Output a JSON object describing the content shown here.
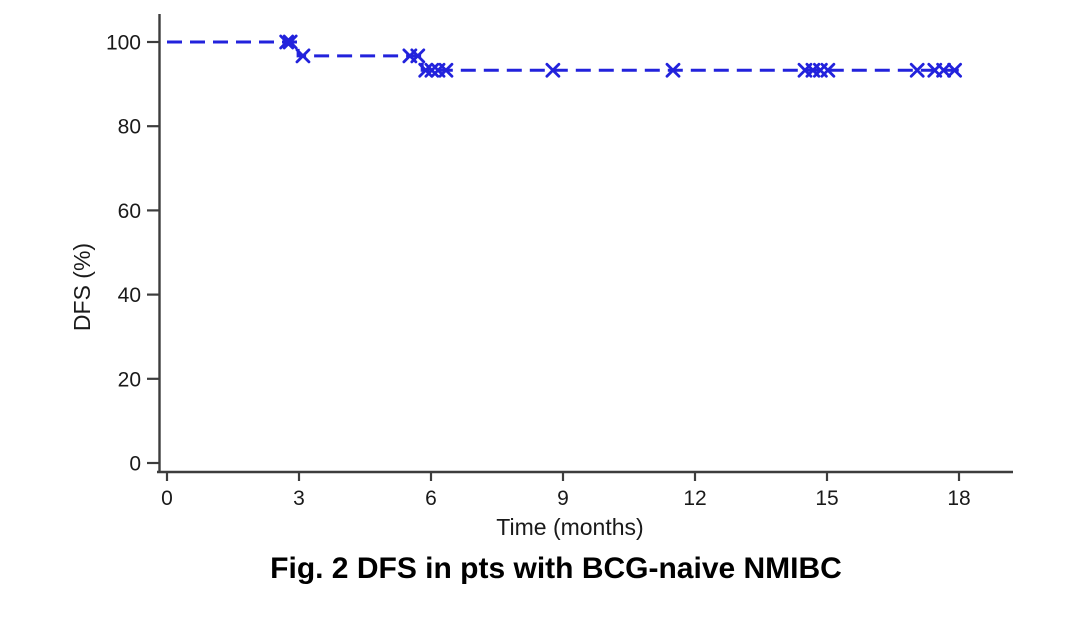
{
  "figure": {
    "caption": "Fig. 2 DFS in pts with BCG-naive NMIBC"
  },
  "chart_data": {
    "type": "line",
    "subtype": "kaplan-meier-step",
    "title": "Fig. 2 DFS in pts with BCG-naive NMIBC",
    "xlabel": "Time (months)",
    "ylabel": "DFS (%)",
    "xlim": [
      0,
      18
    ],
    "ylim": [
      0,
      100
    ],
    "xticks": [
      0,
      3,
      6,
      9,
      12,
      15,
      18
    ],
    "yticks": [
      0,
      20,
      40,
      60,
      80,
      100
    ],
    "grid": false,
    "legend": "none",
    "series": [
      {
        "name": "DFS",
        "line_style": "dashed",
        "color": "#2222DC",
        "steps": [
          {
            "t": 0.0,
            "dfs": 100.0
          },
          {
            "t": 2.98,
            "dfs": 96.7
          },
          {
            "t": 5.8,
            "dfs": 93.3
          }
        ],
        "end_t": 18.0,
        "censor_marks": [
          {
            "t": 2.72,
            "dfs": 100.0
          },
          {
            "t": 2.8,
            "dfs": 100.0
          },
          {
            "t": 3.09,
            "dfs": 96.7
          },
          {
            "t": 5.52,
            "dfs": 96.7
          },
          {
            "t": 5.7,
            "dfs": 96.7
          },
          {
            "t": 5.88,
            "dfs": 93.3
          },
          {
            "t": 6.02,
            "dfs": 93.3
          },
          {
            "t": 6.16,
            "dfs": 93.3
          },
          {
            "t": 6.34,
            "dfs": 93.3
          },
          {
            "t": 8.77,
            "dfs": 93.3
          },
          {
            "t": 11.5,
            "dfs": 93.3
          },
          {
            "t": 14.5,
            "dfs": 93.3
          },
          {
            "t": 14.68,
            "dfs": 93.3
          },
          {
            "t": 14.85,
            "dfs": 93.3
          },
          {
            "t": 15.02,
            "dfs": 93.3
          },
          {
            "t": 17.05,
            "dfs": 93.3
          },
          {
            "t": 17.45,
            "dfs": 93.3
          },
          {
            "t": 17.65,
            "dfs": 93.3
          },
          {
            "t": 17.9,
            "dfs": 93.3
          }
        ]
      }
    ],
    "colors": {
      "line": "#2222DC",
      "axis": "#3d3d3d",
      "text": "#1a1a1a",
      "background": "#ffffff"
    }
  }
}
